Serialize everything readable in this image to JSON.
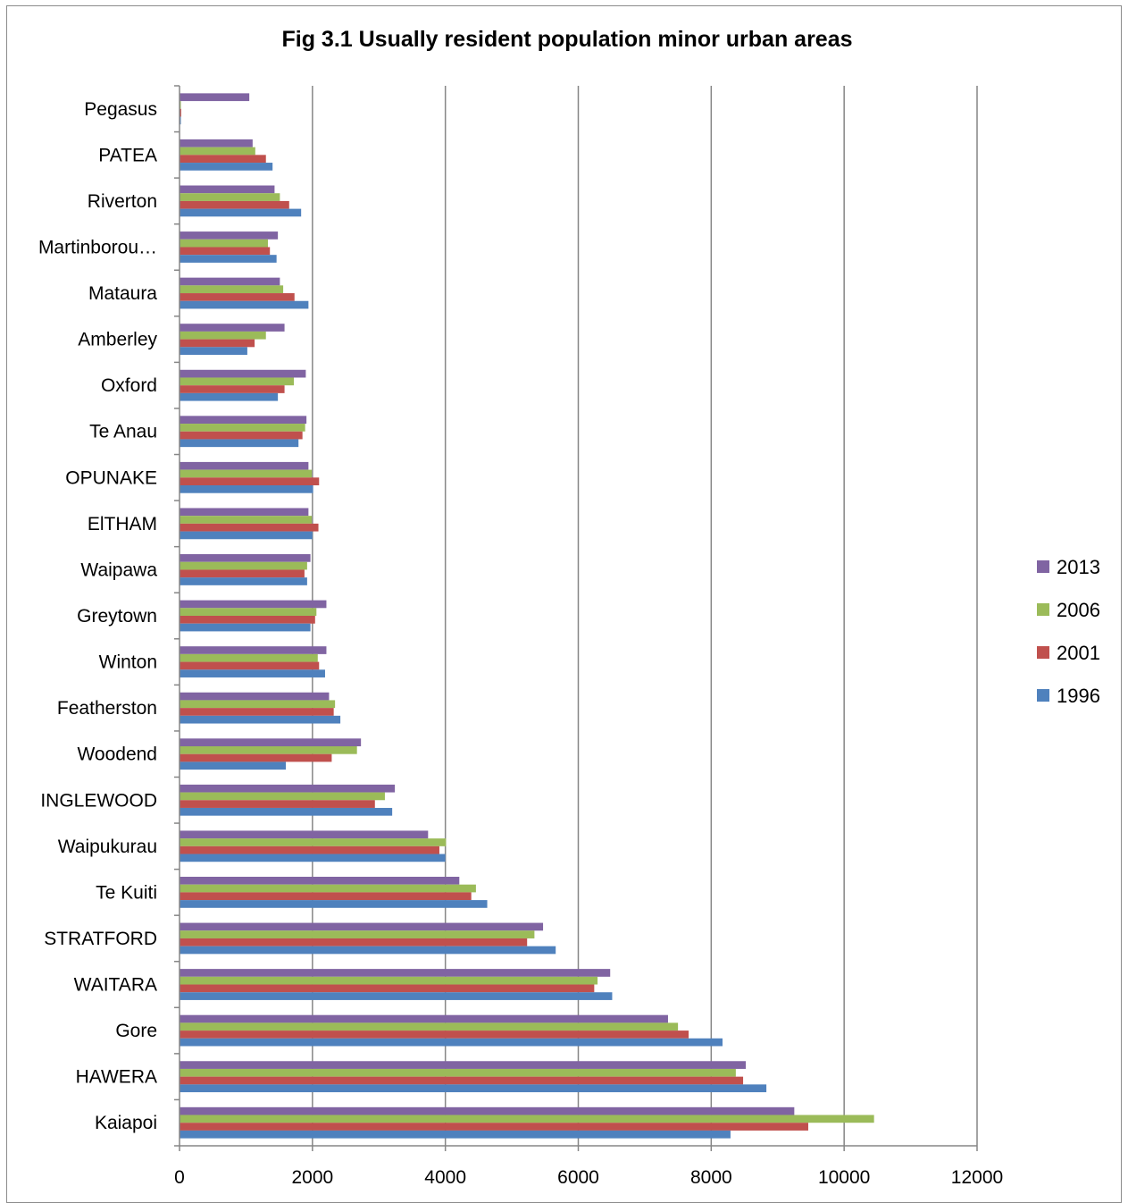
{
  "chart_data": {
    "type": "bar",
    "orientation": "horizontal",
    "title": "Fig 3.1  Usually resident population minor urban areas",
    "xlabel": "",
    "ylabel": "",
    "xlim": [
      0,
      12000
    ],
    "x_ticks": [
      "0",
      "2000",
      "4000",
      "6000",
      "8000",
      "10000",
      "12000"
    ],
    "grid": "vertical major gridlines",
    "legend_position": "right",
    "categories": [
      "Pegasus",
      "PATEA",
      "Riverton",
      "Martinborou…",
      "Mataura",
      "Amberley",
      "Oxford",
      "Te Anau",
      "OPUNAKE",
      "ElTHAM",
      "Waipawa",
      "Greytown",
      "Winton",
      "Featherston",
      "Woodend",
      "INGLEWOOD",
      "Waipukurau",
      "Te Kuiti",
      "STRATFORD",
      "WAITARA",
      "Gore",
      "HAWERA",
      "Kaiapoi"
    ],
    "series": [
      {
        "name": "2013",
        "color": "#8064a2",
        "values": [
          1050,
          1100,
          1430,
          1480,
          1510,
          1580,
          1900,
          1910,
          1940,
          1940,
          1970,
          2210,
          2210,
          2250,
          2730,
          3240,
          3740,
          4210,
          5470,
          6480,
          7350,
          8520,
          9250
        ]
      },
      {
        "name": "2006",
        "color": "#9bbb59",
        "values": [
          20,
          1140,
          1510,
          1330,
          1560,
          1300,
          1720,
          1890,
          1990,
          1990,
          1920,
          2060,
          2080,
          2340,
          2670,
          3090,
          4010,
          4460,
          5340,
          6290,
          7500,
          8370,
          10450
        ]
      },
      {
        "name": "2001",
        "color": "#c0504d",
        "values": [
          25,
          1300,
          1650,
          1360,
          1730,
          1130,
          1580,
          1850,
          2100,
          2090,
          1880,
          2040,
          2100,
          2320,
          2290,
          2940,
          3910,
          4390,
          5230,
          6240,
          7660,
          8480,
          9460
        ]
      },
      {
        "name": "1996",
        "color": "#4f81bd",
        "values": [
          20,
          1400,
          1830,
          1460,
          1940,
          1020,
          1480,
          1790,
          2010,
          2000,
          1920,
          1970,
          2190,
          2420,
          1600,
          3200,
          4000,
          4630,
          5660,
          6510,
          8170,
          8830,
          8290
        ]
      }
    ]
  }
}
